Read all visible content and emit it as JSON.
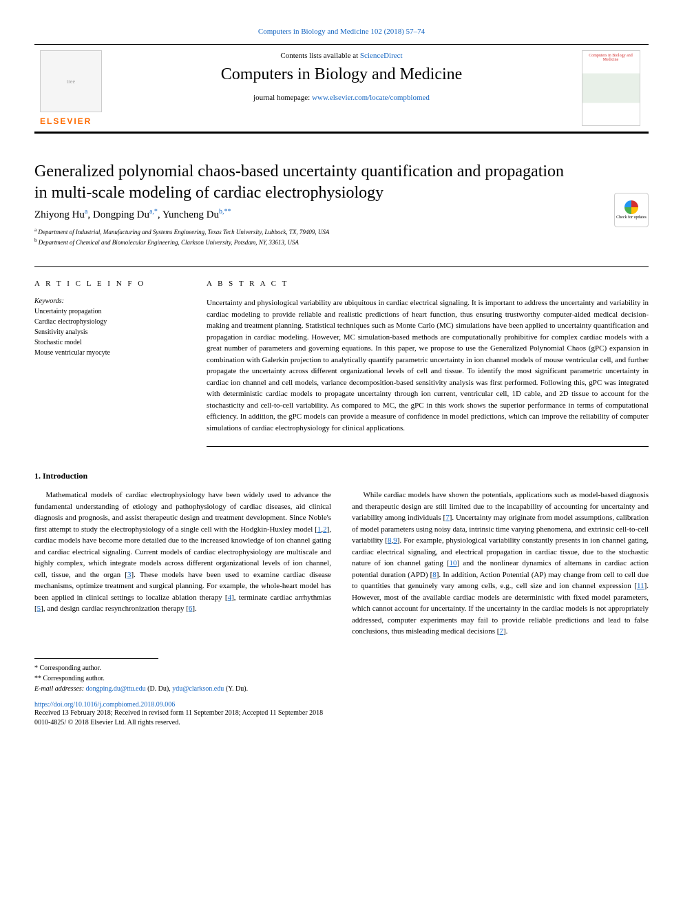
{
  "header": {
    "citation": "Computers in Biology and Medicine 102 (2018) 57–74",
    "contents_prefix": "Contents lists available at ",
    "contents_link": "ScienceDirect",
    "journal_name": "Computers in Biology and Medicine",
    "homepage_prefix": "journal homepage: ",
    "homepage_link": "www.elsevier.com/locate/compbiomed",
    "publisher": "ELSEVIER",
    "cover_text": "Computers in Biology and Medicine",
    "check_updates": "Check for updates"
  },
  "article": {
    "title": "Generalized polynomial chaos-based uncertainty quantification and propagation in multi-scale modeling of cardiac electrophysiology",
    "authors_html": "Zhiyong Hu",
    "author1": "Zhiyong Hu",
    "author1_sup": "a",
    "author2": "Dongping Du",
    "author2_sup": "a,",
    "author2_star": "*",
    "author3": "Yuncheng Du",
    "author3_sup": "b,",
    "author3_star": "**",
    "affil_a": "Department of Industrial, Manufacturing and Systems Engineering, Texas Tech University, Lubbock, TX, 79409, USA",
    "affil_b": "Department of Chemical and Biomolecular Engineering, Clarkson University, Potsdam, NY, 33613, USA"
  },
  "info": {
    "label": "A R T I C L E  I N F O",
    "keywords_label": "Keywords:",
    "keywords": [
      "Uncertainty propagation",
      "Cardiac electrophysiology",
      "Sensitivity analysis",
      "Stochastic model",
      "Mouse ventricular myocyte"
    ]
  },
  "abstract": {
    "label": "A B S T R A C T",
    "text": "Uncertainty and physiological variability are ubiquitous in cardiac electrical signaling. It is important to address the uncertainty and variability in cardiac modeling to provide reliable and realistic predictions of heart function, thus ensuring trustworthy computer-aided medical decision-making and treatment planning. Statistical techniques such as Monte Carlo (MC) simulations have been applied to uncertainty quantification and propagation in cardiac modeling. However, MC simulation-based methods are computationally prohibitive for complex cardiac models with a great number of parameters and governing equations. In this paper, we propose to use the Generalized Polynomial Chaos (gPC) expansion in combination with Galerkin projection to analytically quantify parametric uncertainty in ion channel models of mouse ventricular cell, and further propagate the uncertainty across different organizational levels of cell and tissue. To identify the most significant parametric uncertainty in cardiac ion channel and cell models, variance decomposition-based sensitivity analysis was first performed. Following this, gPC was integrated with deterministic cardiac models to propagate uncertainty through ion current, ventricular cell, 1D cable, and 2D tissue to account for the stochasticity and cell-to-cell variability. As compared to MC, the gPC in this work shows the superior performance in terms of computational efficiency. In addition, the gPC models can provide a measure of confidence in model predictions, which can improve the reliability of computer simulations of cardiac electrophysiology for clinical applications."
  },
  "intro": {
    "heading": "1. Introduction",
    "para1_a": "Mathematical models of cardiac electrophysiology have been widely used to advance the fundamental understanding of etiology and pathophysiology of cardiac diseases, aid clinical diagnosis and prognosis, and assist therapeutic design and treatment development. Since Noble's first attempt to study the electrophysiology of a single cell with the Hodgkin-Huxley model [",
    "ref1": "1",
    "ref2": "2",
    "para1_b": "], cardiac models have become more detailed due to the increased knowledge of ion channel gating and cardiac electrical signaling. Current models of cardiac electrophysiology are multiscale and highly complex, which integrate models across different organizational levels of ion channel, cell, tissue, and the organ [",
    "ref3": "3",
    "para1_c": "]. These models have been used to examine cardiac disease mechanisms, optimize treatment and surgical planning. For example, the whole-heart model has been applied in clinical settings to localize ablation therapy [",
    "ref4": "4",
    "para1_d": "], terminate cardiac arrhythmias [",
    "ref5": "5",
    "para1_e": "], and design cardiac resynchronization therapy [",
    "ref6": "6",
    "para1_f": "].",
    "para2_a": "While cardiac models have shown the potentials, applications such as model-based diagnosis and therapeutic design are still limited due to the incapability of accounting for uncertainty and variability among individuals [",
    "ref7": "7",
    "para2_b": "]. Uncertainty may originate from model assumptions, calibration of model parameters using noisy data, intrinsic time varying phenomena, and extrinsic cell-to-cell variability [",
    "ref8": "8",
    "ref9": "9",
    "para2_c": "]. For example, physiological variability constantly presents in ion channel gating, cardiac electrical signaling, and electrical propagation in cardiac tissue, due to the stochastic nature of ion channel gating [",
    "ref10": "10",
    "para2_d": "] and the nonlinear dynamics of alternans in cardiac action potential duration (APD) [",
    "para2_e": "]. In addition, Action Potential (AP) may change from cell to cell due to quantities that genuinely vary among cells, e.g., cell size and ion channel expression [",
    "ref11": "11",
    "para2_f": "]. However, most of the available cardiac models are deterministic with fixed model parameters, which cannot account for uncertainty. If the uncertainty in the cardiac models is not appropriately addressed, computer experiments may fail to provide reliable predictions and lead to false conclusions, thus misleading medical decisions [",
    "para2_g": "]."
  },
  "footer": {
    "corr1": "* Corresponding author.",
    "corr2": "** Corresponding author.",
    "email_label": "E-mail addresses: ",
    "email1": "dongping.du@ttu.edu",
    "email1_name": " (D. Du), ",
    "email2": "ydu@clarkson.edu",
    "email2_name": " (Y. Du).",
    "doi": "https://doi.org/10.1016/j.compbiomed.2018.09.006",
    "received": "Received 13 February 2018; Received in revised form 11 September 2018; Accepted 11 September 2018",
    "issn": "0010-4825/ © 2018 Elsevier Ltd. All rights reserved."
  }
}
